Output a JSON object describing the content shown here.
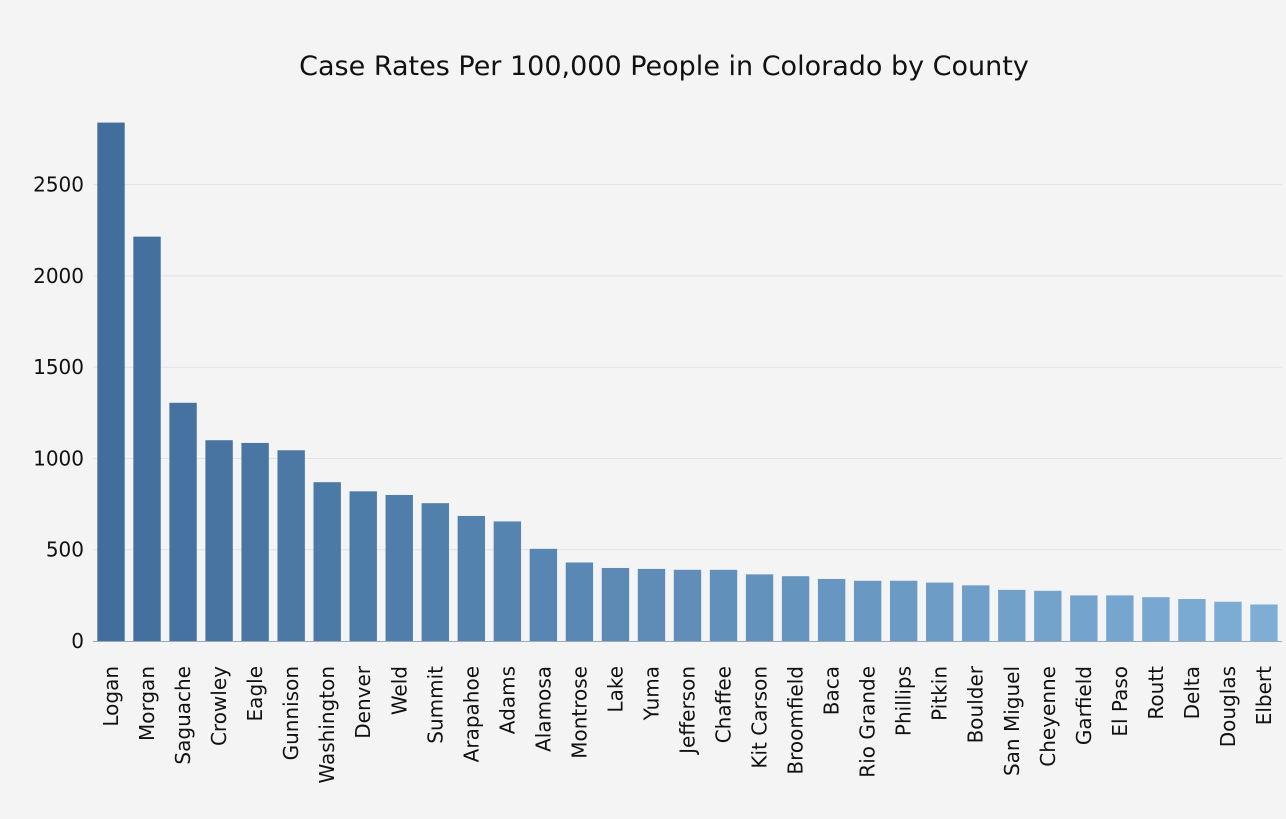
{
  "chart_data": {
    "type": "bar",
    "title": "Case Rates Per 100,000 People in Colorado by County",
    "xlabel": "",
    "ylabel": "",
    "ylim": [
      0,
      2850
    ],
    "yticks": [
      0,
      500,
      1000,
      1500,
      2000,
      2500
    ],
    "grid": true,
    "legend": "none",
    "categories": [
      "Logan",
      "Morgan",
      "Saguache",
      "Crowley",
      "Eagle",
      "Gunnison",
      "Washington",
      "Denver",
      "Weld",
      "Summit",
      "Arapahoe",
      "Adams",
      "Alamosa",
      "Montrose",
      "Lake",
      "Yuma",
      "Jefferson",
      "Chaffee",
      "Kit Carson",
      "Broomfield",
      "Baca",
      "Rio Grande",
      "Phillips",
      "Pitkin",
      "Boulder",
      "San Miguel",
      "Cheyenne",
      "Garfield",
      "El Paso",
      "Routt",
      "Delta",
      "Douglas",
      "Elbert"
    ],
    "values": [
      2840,
      2215,
      1305,
      1100,
      1085,
      1045,
      870,
      820,
      800,
      755,
      685,
      655,
      505,
      430,
      400,
      395,
      390,
      390,
      365,
      355,
      340,
      330,
      330,
      320,
      305,
      280,
      275,
      250,
      250,
      240,
      230,
      215,
      200
    ],
    "color_dark": "#416e9c",
    "color_light": "#7eaed6",
    "background": "#f4f4f4"
  }
}
